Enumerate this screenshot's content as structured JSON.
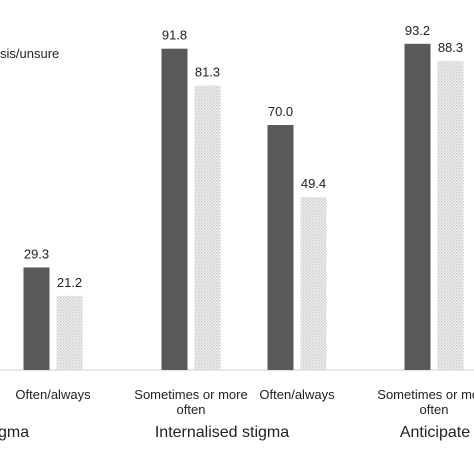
{
  "legend_fragment": "sis/unsure",
  "colors": {
    "series_a": "#595959",
    "series_b_pattern": "#c8c8c8",
    "axis": "#cfcfcf"
  },
  "chart_data": {
    "type": "bar",
    "categories": [
      "Often/always",
      "Sometimes or more often",
      "Often/always",
      "Sometimes or more often"
    ],
    "groups": [
      {
        "label": "gma",
        "categories": [
          0
        ]
      },
      {
        "label": "Internalised stigma",
        "categories": [
          1,
          2
        ]
      },
      {
        "label": "Anticipate",
        "categories": [
          3
        ]
      }
    ],
    "series": [
      {
        "values": [
          29.3,
          91.8,
          70.0,
          93.2
        ],
        "labels": [
          "29.3",
          "91.8",
          "70.0",
          "93.2"
        ],
        "style": "solid"
      },
      {
        "values": [
          21.2,
          81.3,
          49.4,
          88.3
        ],
        "labels": [
          "21.2",
          "81.3",
          "49.4",
          "88.3"
        ],
        "style": "dotted"
      }
    ],
    "ylim": [
      0,
      100
    ],
    "grid": false,
    "legend": "top-left"
  }
}
